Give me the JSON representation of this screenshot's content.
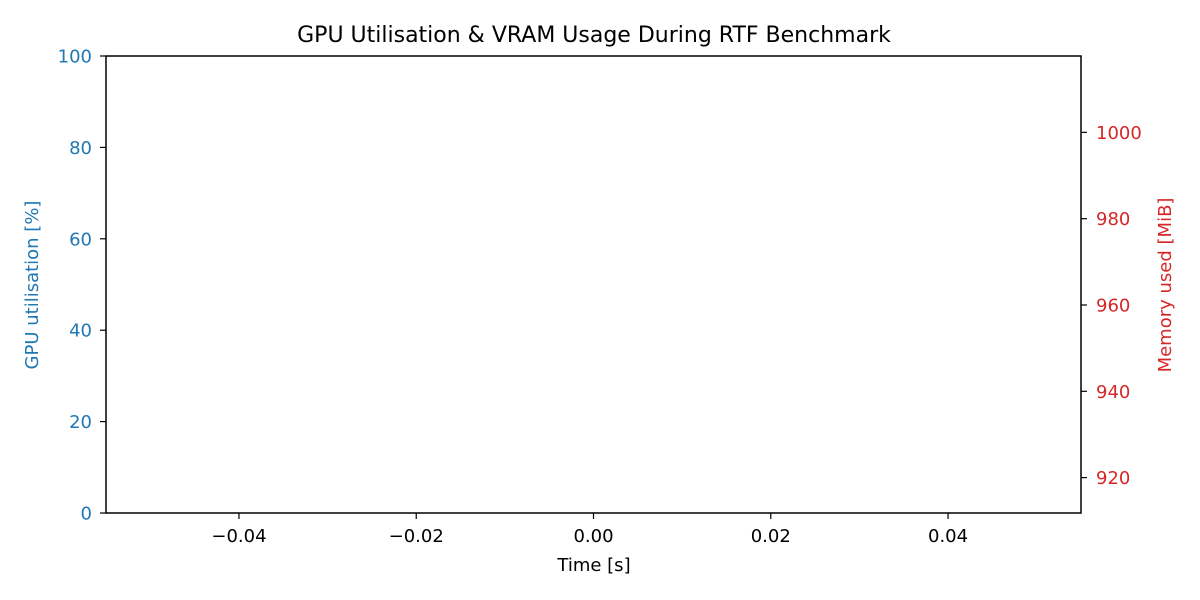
{
  "chart_data": {
    "type": "line",
    "title": "GPU Utilisation & VRAM Usage During RTF Benchmark",
    "xlabel": "Time [s]",
    "xlim": [
      -0.055,
      0.055
    ],
    "xticks": [
      -0.04,
      -0.02,
      0.0,
      0.02,
      0.04
    ],
    "xtick_labels": [
      "−0.04",
      "−0.02",
      "0.00",
      "0.02",
      "0.04"
    ],
    "y_left": {
      "label": "GPU utilisation [%]",
      "color": "#1f77b4",
      "ylim": [
        0,
        100
      ],
      "ticks": [
        0,
        20,
        40,
        60,
        80,
        100
      ],
      "tick_labels": [
        "0",
        "20",
        "40",
        "60",
        "80",
        "100"
      ]
    },
    "y_right": {
      "label": "Memory used [MiB]",
      "color": "#d62728",
      "ylim": [
        911.8,
        1017.7
      ],
      "ticks": [
        920,
        940,
        960,
        980,
        1000
      ],
      "tick_labels": [
        "920",
        "940",
        "960",
        "980",
        "1000"
      ]
    },
    "series": [],
    "grid": false
  }
}
